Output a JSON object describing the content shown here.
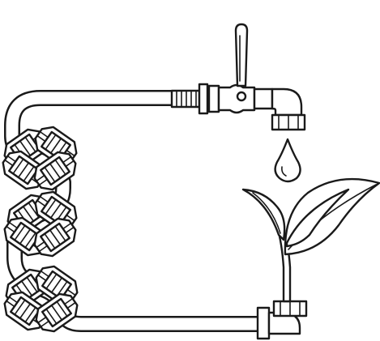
{
  "figure": {
    "kind": "line-art illustration",
    "colors": {
      "stroke": "#1a1a1a",
      "fill": "#ffffff",
      "accent": "#000000"
    },
    "parts": [
      "water-pipe",
      "ball-valve",
      "valve-handle",
      "pipe-elbow",
      "faucet-outlet",
      "water-drop",
      "pipe-coupling",
      "plant-sprout"
    ]
  }
}
